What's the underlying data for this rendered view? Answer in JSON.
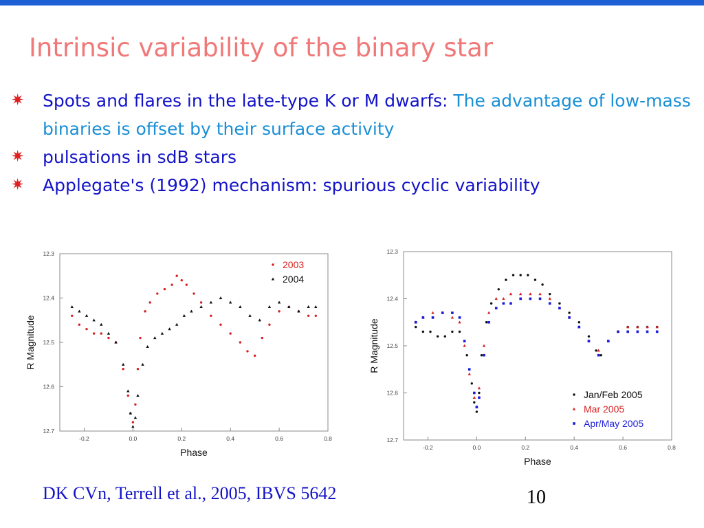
{
  "slide": {
    "title": "Intrinsic variability of the binary star",
    "bullets": [
      {
        "marker": "✷",
        "dark_text": "Spots and flares in the late-type K or M dwarfs: ",
        "light_text": "The advantage of low-mass binaries is offset by their surface activity"
      },
      {
        "marker": "✷",
        "dark_text": "pulsations in sdB stars",
        "light_text": ""
      },
      {
        "marker": "✷",
        "dark_text": "Applegate's (1992) mechanism: spurious cyclic variability",
        "light_text": ""
      }
    ],
    "caption": "DK CVn, Terrell et al., 2005, IBVS 5642",
    "page_number": "10"
  },
  "colors": {
    "accent_bar": "#1f5fd6",
    "title": "#f07878",
    "text_dark": "#1313c8",
    "text_light": "#1a8fd6",
    "bullet_marker": "#e02020"
  },
  "chart_data": [
    {
      "type": "scatter",
      "xlabel": "Phase",
      "ylabel": "R Magnitude",
      "xlim": [
        -0.3,
        0.8
      ],
      "ylim": [
        12.7,
        12.3
      ],
      "y_inverted": true,
      "xticks": [
        "-0.2",
        "0.0",
        "0.2",
        "0.4",
        "0.6",
        "0.8"
      ],
      "xtick_values": [
        -0.2,
        0.0,
        0.2,
        0.4,
        0.6,
        0.8
      ],
      "yticks": [
        "12.3",
        "12.4",
        "12.5",
        "12.6",
        "12.7"
      ],
      "ytick_values": [
        12.3,
        12.4,
        12.5,
        12.6,
        12.7
      ],
      "legend_position": "top-right",
      "series": [
        {
          "name": "2003",
          "color": "#d62020",
          "marker": "dot",
          "x": [
            -0.25,
            -0.22,
            -0.19,
            -0.16,
            -0.13,
            -0.1,
            -0.07,
            -0.04,
            -0.02,
            -0.01,
            0.0,
            0.01,
            0.02,
            0.03,
            0.05,
            0.07,
            0.1,
            0.13,
            0.16,
            0.18,
            0.2,
            0.22,
            0.25,
            0.28,
            0.32,
            0.36,
            0.4,
            0.44,
            0.47,
            0.5,
            0.53,
            0.56,
            0.6,
            0.64,
            0.68,
            0.72,
            0.75
          ],
          "y": [
            12.44,
            12.46,
            12.47,
            12.48,
            12.48,
            12.49,
            12.5,
            12.56,
            12.62,
            12.66,
            12.68,
            12.64,
            12.56,
            12.49,
            12.43,
            12.41,
            12.39,
            12.38,
            12.37,
            12.35,
            12.36,
            12.37,
            12.39,
            12.41,
            12.44,
            12.46,
            12.48,
            12.5,
            12.52,
            12.53,
            12.49,
            12.46,
            12.43,
            12.42,
            12.43,
            12.44,
            12.44
          ]
        },
        {
          "name": "2004",
          "color": "#111111",
          "marker": "triangle",
          "x": [
            -0.25,
            -0.22,
            -0.19,
            -0.16,
            -0.13,
            -0.1,
            -0.07,
            -0.04,
            -0.02,
            -0.01,
            0.0,
            0.01,
            0.02,
            0.04,
            0.06,
            0.09,
            0.12,
            0.15,
            0.18,
            0.21,
            0.24,
            0.28,
            0.32,
            0.36,
            0.4,
            0.44,
            0.48,
            0.52,
            0.56,
            0.6,
            0.64,
            0.68,
            0.72,
            0.75
          ],
          "y": [
            12.42,
            12.43,
            12.44,
            12.45,
            12.46,
            12.48,
            12.5,
            12.55,
            12.61,
            12.66,
            12.69,
            12.67,
            12.62,
            12.55,
            12.51,
            12.49,
            12.48,
            12.47,
            12.46,
            12.44,
            12.43,
            12.42,
            12.41,
            12.4,
            12.41,
            12.42,
            12.44,
            12.45,
            12.42,
            12.41,
            12.42,
            12.43,
            12.42,
            12.42
          ]
        }
      ]
    },
    {
      "type": "scatter",
      "xlabel": "Phase",
      "ylabel": "R Magnitude",
      "xlim": [
        -0.3,
        0.8
      ],
      "ylim": [
        12.7,
        12.3
      ],
      "y_inverted": true,
      "xticks": [
        "-0.2",
        "0.0",
        "0.2",
        "0.4",
        "0.6",
        "0.8"
      ],
      "xtick_values": [
        -0.2,
        0.0,
        0.2,
        0.4,
        0.6,
        0.8
      ],
      "yticks": [
        "12.3",
        "12.4",
        "12.5",
        "12.6",
        "12.7"
      ],
      "ytick_values": [
        12.3,
        12.4,
        12.5,
        12.6,
        12.7
      ],
      "legend_position": "bottom-right",
      "series": [
        {
          "name": "Jan/Feb 2005",
          "color": "#111111",
          "marker": "dot",
          "x": [
            -0.25,
            -0.22,
            -0.19,
            -0.16,
            -0.13,
            -0.1,
            -0.07,
            -0.04,
            -0.02,
            -0.01,
            0.0,
            0.01,
            0.02,
            0.04,
            0.06,
            0.09,
            0.12,
            0.15,
            0.18,
            0.21,
            0.24,
            0.27,
            0.3,
            0.34,
            0.38,
            0.42,
            0.46,
            0.49,
            0.51,
            0.54,
            0.58,
            0.62,
            0.66,
            0.7,
            0.74
          ],
          "y": [
            12.46,
            12.47,
            12.47,
            12.48,
            12.48,
            12.47,
            12.47,
            12.52,
            12.58,
            12.62,
            12.64,
            12.6,
            12.52,
            12.45,
            12.41,
            12.38,
            12.36,
            12.35,
            12.35,
            12.35,
            12.36,
            12.37,
            12.39,
            12.41,
            12.43,
            12.45,
            12.48,
            12.51,
            12.52,
            12.49,
            12.47,
            12.46,
            12.46,
            12.46,
            12.46
          ]
        },
        {
          "name": "Mar 2005",
          "color": "#d62020",
          "marker": "triangle",
          "x": [
            -0.25,
            -0.22,
            -0.18,
            -0.14,
            -0.1,
            -0.07,
            -0.05,
            -0.03,
            -0.01,
            0.0,
            0.01,
            0.03,
            0.05,
            0.08,
            0.11,
            0.14,
            0.18,
            0.22,
            0.26,
            0.3,
            0.34,
            0.38,
            0.42,
            0.46,
            0.5,
            0.54,
            0.58,
            0.62,
            0.66,
            0.7,
            0.74
          ],
          "y": [
            12.45,
            12.44,
            12.43,
            12.43,
            12.44,
            12.45,
            12.5,
            12.56,
            12.61,
            12.63,
            12.59,
            12.5,
            12.43,
            12.4,
            12.4,
            12.39,
            12.39,
            12.39,
            12.39,
            12.4,
            12.42,
            12.44,
            12.46,
            12.49,
            12.51,
            12.49,
            12.47,
            12.46,
            12.46,
            12.46,
            12.46
          ]
        },
        {
          "name": "Apr/May 2005",
          "color": "#1a1adc",
          "marker": "square",
          "x": [
            -0.25,
            -0.22,
            -0.18,
            -0.14,
            -0.1,
            -0.07,
            -0.05,
            -0.03,
            -0.01,
            0.0,
            0.01,
            0.03,
            0.05,
            0.08,
            0.11,
            0.14,
            0.18,
            0.22,
            0.26,
            0.3,
            0.34,
            0.38,
            0.42,
            0.46,
            0.5,
            0.54,
            0.58,
            0.62,
            0.66,
            0.7,
            0.74
          ],
          "y": [
            12.45,
            12.44,
            12.44,
            12.43,
            12.43,
            12.44,
            12.49,
            12.55,
            12.6,
            12.63,
            12.61,
            12.52,
            12.45,
            12.42,
            12.41,
            12.41,
            12.4,
            12.4,
            12.4,
            12.41,
            12.42,
            12.44,
            12.46,
            12.49,
            12.52,
            12.49,
            12.47,
            12.47,
            12.47,
            12.47,
            12.47
          ]
        }
      ]
    }
  ]
}
